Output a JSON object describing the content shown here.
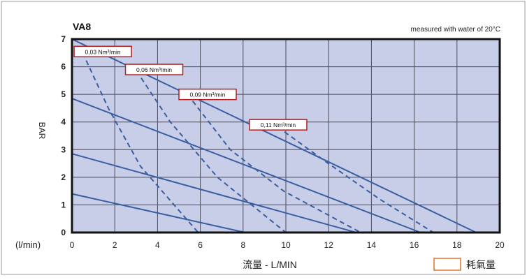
{
  "chart_data": {
    "type": "line",
    "title": "VA8",
    "note": "measured with water of 20°C",
    "ylabel": "BAR",
    "xlabel": "流量 - L/MIN",
    "x_unit_label": "(l/min)",
    "legend_label": "耗氣量",
    "xlim": [
      0,
      20
    ],
    "ylim": [
      0,
      7
    ],
    "xticks": [
      "0",
      "2",
      "4",
      "6",
      "8",
      "10",
      "12",
      "14",
      "16",
      "18",
      "20"
    ],
    "yticks": [
      "0",
      "1",
      "2",
      "3",
      "4",
      "5",
      "6",
      "7"
    ],
    "colors": {
      "plot_bg": "#c8cde8",
      "line": "#3a5ea0",
      "grid": "#4a4a5a",
      "label_border": "#b02020",
      "legend_border": "#e07030"
    },
    "solid_series": [
      {
        "points": [
          [
            0,
            1.4
          ],
          [
            8.1,
            0
          ]
        ]
      },
      {
        "points": [
          [
            0,
            2.85
          ],
          [
            13.3,
            0
          ]
        ]
      },
      {
        "points": [
          [
            0,
            4.85
          ],
          [
            16.3,
            0
          ]
        ]
      },
      {
        "points": [
          [
            0,
            7.0
          ],
          [
            18.9,
            0
          ]
        ]
      }
    ],
    "dashed_series": [
      {
        "points": [
          [
            0.5,
            6.5
          ],
          [
            1.7,
            4.5
          ],
          [
            3.2,
            2.4
          ],
          [
            5.9,
            0
          ]
        ]
      },
      {
        "points": [
          [
            2.8,
            6.1
          ],
          [
            4.6,
            4.0
          ],
          [
            6.8,
            2.0
          ],
          [
            10.0,
            0
          ]
        ]
      },
      {
        "points": [
          [
            5.4,
            5.0
          ],
          [
            7.4,
            3.0
          ],
          [
            9.9,
            1.5
          ],
          [
            13.5,
            0
          ]
        ]
      },
      {
        "points": [
          [
            9.3,
            4.0
          ],
          [
            11.8,
            2.6
          ],
          [
            14.4,
            1.2
          ],
          [
            16.9,
            0
          ]
        ]
      }
    ],
    "annotations": [
      {
        "text": "0,03 Nm³/min",
        "x": 0.1,
        "y": 6.55
      },
      {
        "text": "0,06 Nm³/min",
        "x": 2.5,
        "y": 5.9
      },
      {
        "text": "0,09 Nm³/min",
        "x": 5.0,
        "y": 5.0
      },
      {
        "text": "0,11 Nm³/min",
        "x": 8.3,
        "y": 3.9
      }
    ]
  }
}
